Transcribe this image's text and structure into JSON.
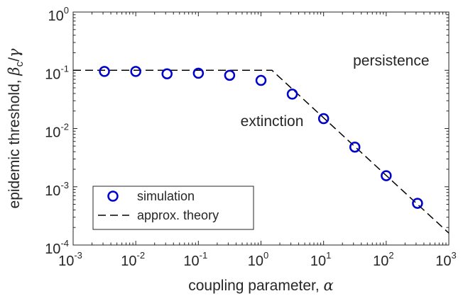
{
  "chart_data": {
    "type": "scatter",
    "x_scale": "log",
    "y_scale": "log",
    "xlim": [
      0.001,
      1000
    ],
    "ylim": [
      0.0001,
      1
    ],
    "x_ticks": [
      {
        "value": 0.001,
        "base": "10",
        "exp": "-3"
      },
      {
        "value": 0.01,
        "base": "10",
        "exp": "-2"
      },
      {
        "value": 0.1,
        "base": "10",
        "exp": "-1"
      },
      {
        "value": 1,
        "base": "10",
        "exp": "0"
      },
      {
        "value": 10,
        "base": "10",
        "exp": "1"
      },
      {
        "value": 100,
        "base": "10",
        "exp": "2"
      },
      {
        "value": 1000,
        "base": "10",
        "exp": "3"
      }
    ],
    "y_ticks": [
      {
        "value": 0.0001,
        "base": "10",
        "exp": "-4"
      },
      {
        "value": 0.001,
        "base": "10",
        "exp": "-3"
      },
      {
        "value": 0.01,
        "base": "10",
        "exp": "-2"
      },
      {
        "value": 0.1,
        "base": "10",
        "exp": "-1"
      },
      {
        "value": 1,
        "base": "10",
        "exp": "0"
      }
    ],
    "xlabel_text": "coupling parameter, ",
    "xlabel_symbol": "α",
    "ylabel_text": "epidemic threshold, ",
    "ylabel_symbol_beta": "β",
    "ylabel_symbol_sub": "c",
    "ylabel_symbol_slash": "/",
    "ylabel_symbol_gamma": "γ",
    "series": [
      {
        "name": "simulation",
        "style": "circle-markers",
        "color": "#0000cc",
        "points": [
          {
            "x": 0.00316,
            "y": 0.0955
          },
          {
            "x": 0.01,
            "y": 0.0955
          },
          {
            "x": 0.0316,
            "y": 0.087
          },
          {
            "x": 0.1,
            "y": 0.089
          },
          {
            "x": 0.316,
            "y": 0.082
          },
          {
            "x": 1,
            "y": 0.067
          },
          {
            "x": 3.16,
            "y": 0.039
          },
          {
            "x": 10,
            "y": 0.0148
          },
          {
            "x": 31.6,
            "y": 0.0048
          },
          {
            "x": 100,
            "y": 0.00155
          },
          {
            "x": 316,
            "y": 0.00052
          }
        ]
      },
      {
        "name": "approx. theory",
        "style": "dashed-line",
        "color": "#000000",
        "points": [
          {
            "x": 0.001,
            "y": 0.1
          },
          {
            "x": 1.5,
            "y": 0.1
          },
          {
            "x": 1000,
            "y": 0.00016
          }
        ]
      }
    ],
    "annotations": [
      {
        "text": "persistence",
        "x": 120,
        "y": 0.12
      },
      {
        "text": "extinction",
        "x": 1.5,
        "y": 0.011
      }
    ],
    "legend_position": "bottom-left",
    "grid": false
  }
}
